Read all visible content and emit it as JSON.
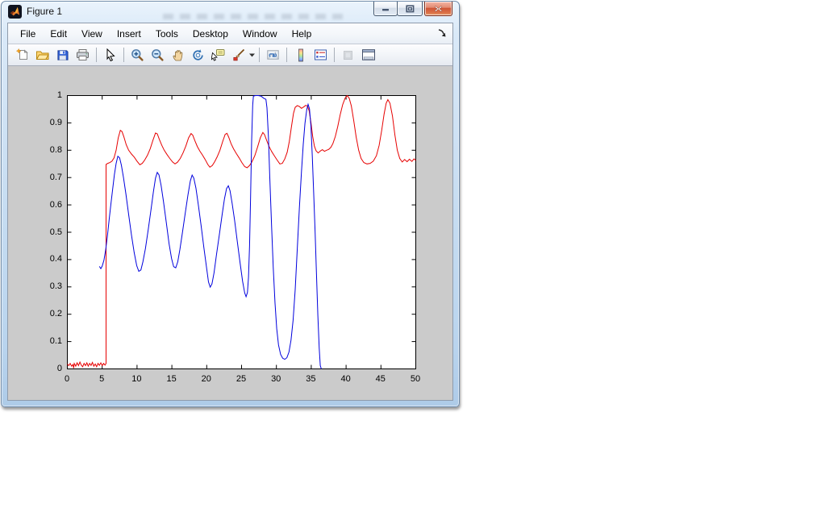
{
  "window": {
    "title": "Figure 1",
    "controls": [
      "minimize",
      "restore",
      "close"
    ]
  },
  "menubar": {
    "items": [
      "File",
      "Edit",
      "View",
      "Insert",
      "Tools",
      "Desktop",
      "Window",
      "Help"
    ],
    "dock_icon": "dock-figure-arrow-icon"
  },
  "toolbar": {
    "items": [
      {
        "icon": "new-figure"
      },
      {
        "icon": "open-file"
      },
      {
        "icon": "save-figure"
      },
      {
        "icon": "print-figure"
      },
      {
        "icon": "separator"
      },
      {
        "icon": "edit-plot-pointer"
      },
      {
        "icon": "separator"
      },
      {
        "icon": "zoom-in"
      },
      {
        "icon": "zoom-out"
      },
      {
        "icon": "pan-hand"
      },
      {
        "icon": "rotate-3d"
      },
      {
        "icon": "data-cursor"
      },
      {
        "icon": "brush-data",
        "has_dropdown": true
      },
      {
        "icon": "separator"
      },
      {
        "icon": "link-plot"
      },
      {
        "icon": "separator"
      },
      {
        "icon": "insert-colorbar"
      },
      {
        "icon": "insert-legend"
      },
      {
        "icon": "separator"
      },
      {
        "icon": "hide-plot-tools",
        "disabled": true
      },
      {
        "icon": "show-plot-tools-dock"
      }
    ]
  },
  "colors": {
    "figure_bg": "#cbcbcb",
    "axes_bg": "#ffffff",
    "axis_line": "#000000"
  },
  "chart_data": {
    "type": "line",
    "title": "",
    "xlabel": "",
    "ylabel": "",
    "xlim": [
      0,
      50
    ],
    "ylim": [
      0,
      1
    ],
    "grid": false,
    "legend": "none",
    "x_ticks": [
      0,
      5,
      10,
      15,
      20,
      25,
      30,
      35,
      40,
      45,
      50
    ],
    "x_tick_labels": [
      "0",
      "5",
      "10",
      "15",
      "20",
      "25",
      "30",
      "35",
      "40",
      "45",
      "50"
    ],
    "y_ticks": [
      0,
      0.1,
      0.2,
      0.3,
      0.4,
      0.5,
      0.6,
      0.7,
      0.8,
      0.9,
      1
    ],
    "y_tick_labels": [
      "0",
      "0.1",
      "0.2",
      "0.3",
      "0.4",
      "0.5",
      "0.6",
      "0.7",
      "0.8",
      "0.9",
      "1"
    ],
    "series": [
      {
        "name": "red-signal",
        "color": "#e60000",
        "points": [
          [
            0,
            0.018
          ],
          [
            0.2,
            0.012
          ],
          [
            0.4,
            0.02
          ],
          [
            0.6,
            0.01
          ],
          [
            0.8,
            0.016
          ],
          [
            0.9,
            0.003
          ],
          [
            1.0,
            0.02
          ],
          [
            1.2,
            0.01
          ],
          [
            1.4,
            0.022
          ],
          [
            1.6,
            0.012
          ],
          [
            1.8,
            0.025
          ],
          [
            2.0,
            0.014
          ],
          [
            2.2,
            0.008
          ],
          [
            2.4,
            0.02
          ],
          [
            2.6,
            0.012
          ],
          [
            2.8,
            0.022
          ],
          [
            3.0,
            0.01
          ],
          [
            3.2,
            0.02
          ],
          [
            3.4,
            0.013
          ],
          [
            3.6,
            0.024
          ],
          [
            3.8,
            0.01
          ],
          [
            4.0,
            0.018
          ],
          [
            4.2,
            0.008
          ],
          [
            4.4,
            0.02
          ],
          [
            4.6,
            0.013
          ],
          [
            4.8,
            0.022
          ],
          [
            5.0,
            0.012
          ],
          [
            5.2,
            0.02
          ],
          [
            5.4,
            0.014
          ],
          [
            5.55,
            0.02
          ],
          [
            5.55,
            0.748
          ],
          [
            5.8,
            0.752
          ],
          [
            6.1,
            0.755
          ],
          [
            6.4,
            0.76
          ],
          [
            6.7,
            0.772
          ],
          [
            7.0,
            0.8
          ],
          [
            7.3,
            0.845
          ],
          [
            7.6,
            0.873
          ],
          [
            7.85,
            0.868
          ],
          [
            8.1,
            0.85
          ],
          [
            8.45,
            0.82
          ],
          [
            8.8,
            0.8
          ],
          [
            9.2,
            0.786
          ],
          [
            9.6,
            0.775
          ],
          [
            10.0,
            0.76
          ],
          [
            10.4,
            0.747
          ],
          [
            10.75,
            0.752
          ],
          [
            11.1,
            0.764
          ],
          [
            11.5,
            0.782
          ],
          [
            11.9,
            0.806
          ],
          [
            12.3,
            0.838
          ],
          [
            12.65,
            0.863
          ],
          [
            12.9,
            0.86
          ],
          [
            13.2,
            0.84
          ],
          [
            13.55,
            0.818
          ],
          [
            13.9,
            0.8
          ],
          [
            14.3,
            0.784
          ],
          [
            14.7,
            0.77
          ],
          [
            15.1,
            0.757
          ],
          [
            15.45,
            0.75
          ],
          [
            15.8,
            0.756
          ],
          [
            16.2,
            0.77
          ],
          [
            16.6,
            0.79
          ],
          [
            17.0,
            0.815
          ],
          [
            17.4,
            0.845
          ],
          [
            17.75,
            0.861
          ],
          [
            18.0,
            0.855
          ],
          [
            18.3,
            0.835
          ],
          [
            18.65,
            0.814
          ],
          [
            19.0,
            0.797
          ],
          [
            19.4,
            0.782
          ],
          [
            19.8,
            0.765
          ],
          [
            20.15,
            0.748
          ],
          [
            20.45,
            0.738
          ],
          [
            20.8,
            0.744
          ],
          [
            21.15,
            0.758
          ],
          [
            21.5,
            0.776
          ],
          [
            21.9,
            0.8
          ],
          [
            22.3,
            0.833
          ],
          [
            22.65,
            0.858
          ],
          [
            22.9,
            0.862
          ],
          [
            23.15,
            0.848
          ],
          [
            23.5,
            0.824
          ],
          [
            23.85,
            0.805
          ],
          [
            24.25,
            0.788
          ],
          [
            24.65,
            0.772
          ],
          [
            25.05,
            0.755
          ],
          [
            25.45,
            0.74
          ],
          [
            25.8,
            0.736
          ],
          [
            26.15,
            0.744
          ],
          [
            26.5,
            0.758
          ],
          [
            26.9,
            0.78
          ],
          [
            27.3,
            0.812
          ],
          [
            27.7,
            0.846
          ],
          [
            28.05,
            0.865
          ],
          [
            28.3,
            0.857
          ],
          [
            28.6,
            0.836
          ],
          [
            28.95,
            0.814
          ],
          [
            29.3,
            0.796
          ],
          [
            29.7,
            0.78
          ],
          [
            30.1,
            0.764
          ],
          [
            30.5,
            0.75
          ],
          [
            30.85,
            0.752
          ],
          [
            31.2,
            0.768
          ],
          [
            31.55,
            0.793
          ],
          [
            31.85,
            0.832
          ],
          [
            32.15,
            0.885
          ],
          [
            32.45,
            0.935
          ],
          [
            32.7,
            0.957
          ],
          [
            33.0,
            0.963
          ],
          [
            33.3,
            0.96
          ],
          [
            33.6,
            0.953
          ],
          [
            33.9,
            0.958
          ],
          [
            34.2,
            0.964
          ],
          [
            34.45,
            0.962
          ],
          [
            34.7,
            0.944
          ],
          [
            34.95,
            0.902
          ],
          [
            35.2,
            0.852
          ],
          [
            35.45,
            0.815
          ],
          [
            35.7,
            0.798
          ],
          [
            36.0,
            0.79
          ],
          [
            36.3,
            0.797
          ],
          [
            36.6,
            0.802
          ],
          [
            36.9,
            0.796
          ],
          [
            37.2,
            0.8
          ],
          [
            37.5,
            0.803
          ],
          [
            37.8,
            0.81
          ],
          [
            38.1,
            0.824
          ],
          [
            38.45,
            0.85
          ],
          [
            38.8,
            0.886
          ],
          [
            39.15,
            0.93
          ],
          [
            39.5,
            0.966
          ],
          [
            39.85,
            0.99
          ],
          [
            40.15,
            1.0
          ],
          [
            40.45,
            0.99
          ],
          [
            40.75,
            0.962
          ],
          [
            41.1,
            0.908
          ],
          [
            41.45,
            0.848
          ],
          [
            41.8,
            0.8
          ],
          [
            42.15,
            0.77
          ],
          [
            42.55,
            0.755
          ],
          [
            43.0,
            0.75
          ],
          [
            43.45,
            0.752
          ],
          [
            43.9,
            0.76
          ],
          [
            44.35,
            0.78
          ],
          [
            44.75,
            0.818
          ],
          [
            45.1,
            0.872
          ],
          [
            45.45,
            0.932
          ],
          [
            45.75,
            0.972
          ],
          [
            46.0,
            0.985
          ],
          [
            46.3,
            0.972
          ],
          [
            46.65,
            0.925
          ],
          [
            47.0,
            0.856
          ],
          [
            47.35,
            0.8
          ],
          [
            47.7,
            0.77
          ],
          [
            48.05,
            0.757
          ],
          [
            48.4,
            0.766
          ],
          [
            48.75,
            0.758
          ],
          [
            49.1,
            0.767
          ],
          [
            49.45,
            0.759
          ],
          [
            49.75,
            0.768
          ],
          [
            50,
            0.763
          ]
        ]
      },
      {
        "name": "blue-signal",
        "color": "#0000dd",
        "points": [
          [
            4.6,
            0.375
          ],
          [
            4.8,
            0.367
          ],
          [
            5.0,
            0.376
          ],
          [
            5.25,
            0.398
          ],
          [
            5.5,
            0.435
          ],
          [
            5.75,
            0.487
          ],
          [
            6.0,
            0.545
          ],
          [
            6.25,
            0.603
          ],
          [
            6.5,
            0.658
          ],
          [
            6.75,
            0.71
          ],
          [
            7.0,
            0.752
          ],
          [
            7.25,
            0.778
          ],
          [
            7.5,
            0.772
          ],
          [
            7.75,
            0.745
          ],
          [
            8.05,
            0.7
          ],
          [
            8.4,
            0.64
          ],
          [
            8.8,
            0.565
          ],
          [
            9.2,
            0.49
          ],
          [
            9.6,
            0.425
          ],
          [
            9.95,
            0.378
          ],
          [
            10.25,
            0.357
          ],
          [
            10.55,
            0.362
          ],
          [
            10.85,
            0.392
          ],
          [
            11.2,
            0.44
          ],
          [
            11.6,
            0.508
          ],
          [
            12.0,
            0.582
          ],
          [
            12.35,
            0.648
          ],
          [
            12.65,
            0.698
          ],
          [
            12.9,
            0.719
          ],
          [
            13.15,
            0.71
          ],
          [
            13.45,
            0.672
          ],
          [
            13.8,
            0.612
          ],
          [
            14.2,
            0.535
          ],
          [
            14.6,
            0.458
          ],
          [
            14.95,
            0.404
          ],
          [
            15.25,
            0.374
          ],
          [
            15.55,
            0.37
          ],
          [
            15.85,
            0.392
          ],
          [
            16.15,
            0.436
          ],
          [
            16.5,
            0.497
          ],
          [
            16.9,
            0.566
          ],
          [
            17.3,
            0.636
          ],
          [
            17.65,
            0.688
          ],
          [
            17.9,
            0.709
          ],
          [
            18.15,
            0.698
          ],
          [
            18.45,
            0.662
          ],
          [
            18.8,
            0.6
          ],
          [
            19.2,
            0.523
          ],
          [
            19.6,
            0.443
          ],
          [
            19.95,
            0.375
          ],
          [
            20.25,
            0.318
          ],
          [
            20.5,
            0.299
          ],
          [
            20.75,
            0.311
          ],
          [
            21.05,
            0.352
          ],
          [
            21.4,
            0.418
          ],
          [
            21.8,
            0.49
          ],
          [
            22.2,
            0.562
          ],
          [
            22.55,
            0.622
          ],
          [
            22.85,
            0.66
          ],
          [
            23.1,
            0.67
          ],
          [
            23.35,
            0.652
          ],
          [
            23.65,
            0.606
          ],
          [
            24.0,
            0.543
          ],
          [
            24.4,
            0.464
          ],
          [
            24.8,
            0.385
          ],
          [
            25.15,
            0.32
          ],
          [
            25.45,
            0.278
          ],
          [
            25.65,
            0.264
          ],
          [
            25.85,
            0.28
          ],
          [
            26.0,
            0.335
          ],
          [
            26.15,
            0.45
          ],
          [
            26.3,
            0.63
          ],
          [
            26.45,
            0.835
          ],
          [
            26.6,
            0.965
          ],
          [
            26.7,
            0.998
          ],
          [
            27.0,
            1.0
          ],
          [
            27.4,
            1.0
          ],
          [
            27.8,
            0.998
          ],
          [
            28.2,
            0.99
          ],
          [
            28.5,
            0.986
          ],
          [
            28.65,
            0.955
          ],
          [
            28.85,
            0.85
          ],
          [
            29.05,
            0.7
          ],
          [
            29.3,
            0.525
          ],
          [
            29.55,
            0.37
          ],
          [
            29.8,
            0.24
          ],
          [
            30.05,
            0.147
          ],
          [
            30.3,
            0.088
          ],
          [
            30.6,
            0.053
          ],
          [
            30.9,
            0.039
          ],
          [
            31.2,
            0.035
          ],
          [
            31.5,
            0.041
          ],
          [
            31.8,
            0.062
          ],
          [
            32.1,
            0.105
          ],
          [
            32.4,
            0.178
          ],
          [
            32.7,
            0.29
          ],
          [
            33.0,
            0.44
          ],
          [
            33.3,
            0.59
          ],
          [
            33.6,
            0.722
          ],
          [
            33.85,
            0.822
          ],
          [
            34.1,
            0.898
          ],
          [
            34.35,
            0.948
          ],
          [
            34.55,
            0.968
          ],
          [
            34.75,
            0.952
          ],
          [
            34.95,
            0.888
          ],
          [
            35.15,
            0.778
          ],
          [
            35.35,
            0.645
          ],
          [
            35.55,
            0.5
          ],
          [
            35.75,
            0.345
          ],
          [
            35.95,
            0.195
          ],
          [
            36.15,
            0.075
          ],
          [
            36.3,
            0.012
          ],
          [
            36.45,
            0.0
          ]
        ]
      }
    ]
  }
}
